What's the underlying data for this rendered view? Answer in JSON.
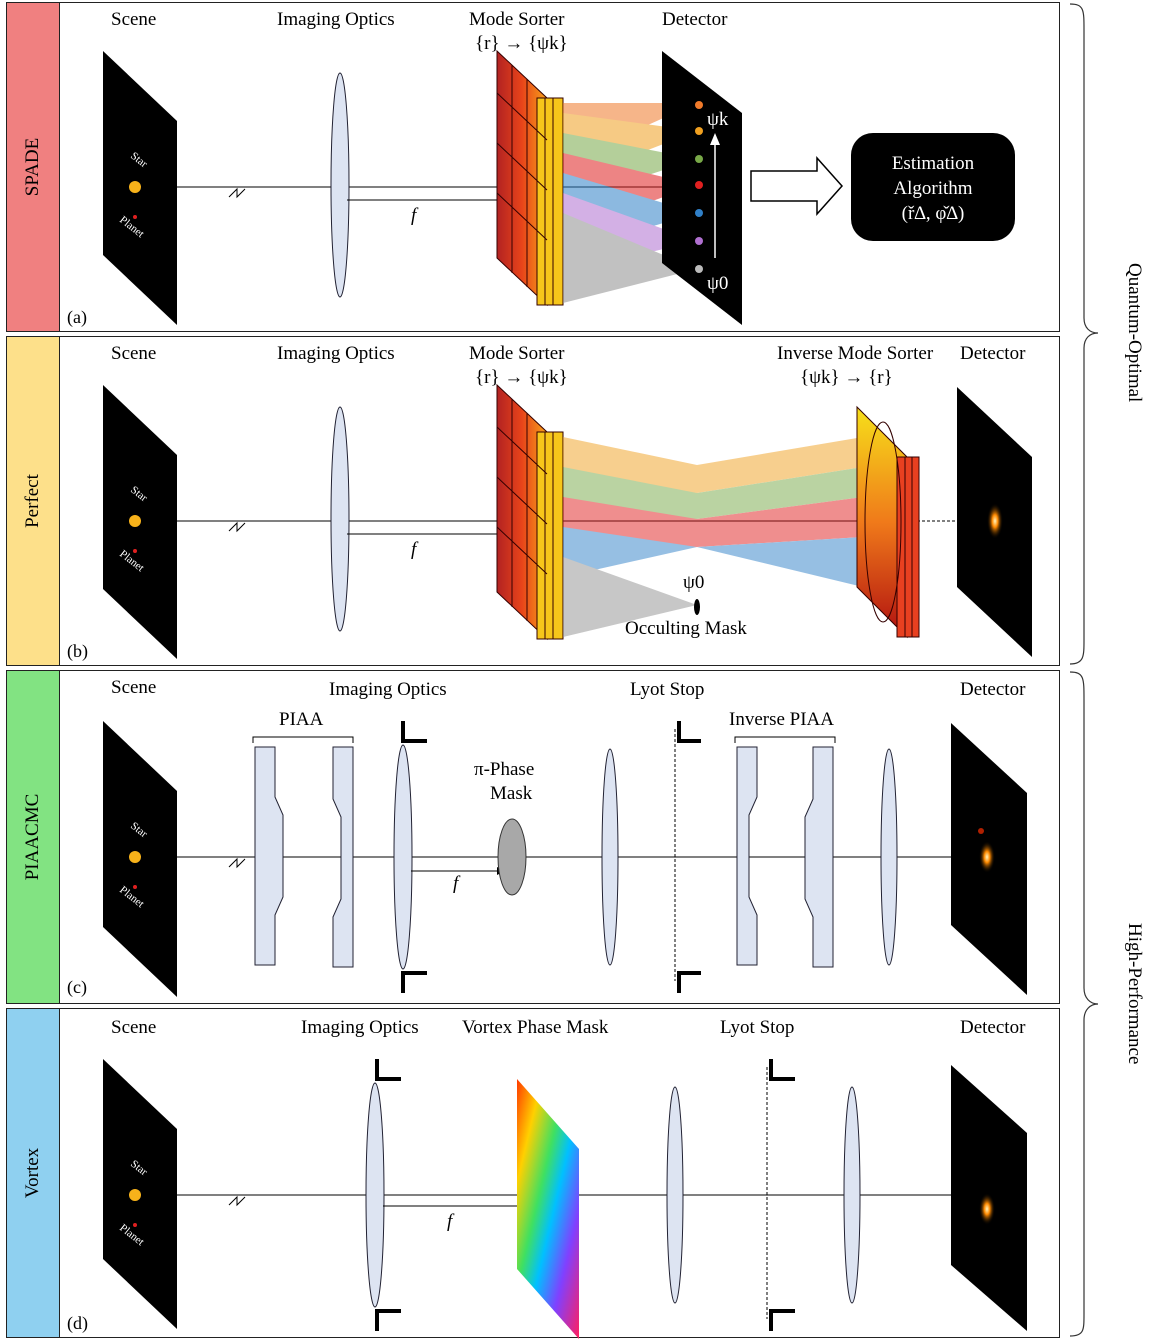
{
  "panels": [
    {
      "side": "SPADE",
      "tag": "(a)",
      "color": "#f08080",
      "labels": {
        "scene": "Scene",
        "optics": "Imaging Optics",
        "sorter": "Mode Sorter",
        "sorter_map": "{r} → {ψk}",
        "detector": "Detector"
      }
    },
    {
      "side": "Perfect",
      "tag": "(b)",
      "color": "#fde08a",
      "labels": {
        "scene": "Scene",
        "optics": "Imaging Optics",
        "sorter": "Mode Sorter",
        "sorter_map": "{r} → {ψk}",
        "inverse": "Inverse Mode Sorter",
        "inverse_map": "{ψk} → {r}",
        "detector": "Detector",
        "mask": "Occulting Mask",
        "psi0": "ψ0"
      }
    },
    {
      "side": "PIAACMC",
      "tag": "(c)",
      "color": "#82e382",
      "labels": {
        "scene": "Scene",
        "optics": "Imaging Optics",
        "lyot": "Lyot Stop",
        "detector": "Detector",
        "piaa": "PIAA",
        "inv_piaa": "Inverse PIAA",
        "phase_mask_1": "π-Phase",
        "phase_mask_2": "Mask"
      }
    },
    {
      "side": "Vortex",
      "tag": "(d)",
      "color": "#8fd0f0",
      "labels": {
        "scene": "Scene",
        "optics": "Imaging Optics",
        "vortex": "Vortex Phase Mask",
        "lyot": "Lyot Stop",
        "detector": "Detector"
      }
    }
  ],
  "common": {
    "star": "Star",
    "planet": "Planet",
    "focal": "f",
    "psi_k": "ψk",
    "psi_0": "ψ0"
  },
  "estimation": {
    "line1": "Estimation",
    "line2": "Algorithm",
    "line3": "(ř∆, φ̌∆)"
  },
  "braces": {
    "top": "Quantum-Optimal",
    "bottom": "High-Performance"
  }
}
